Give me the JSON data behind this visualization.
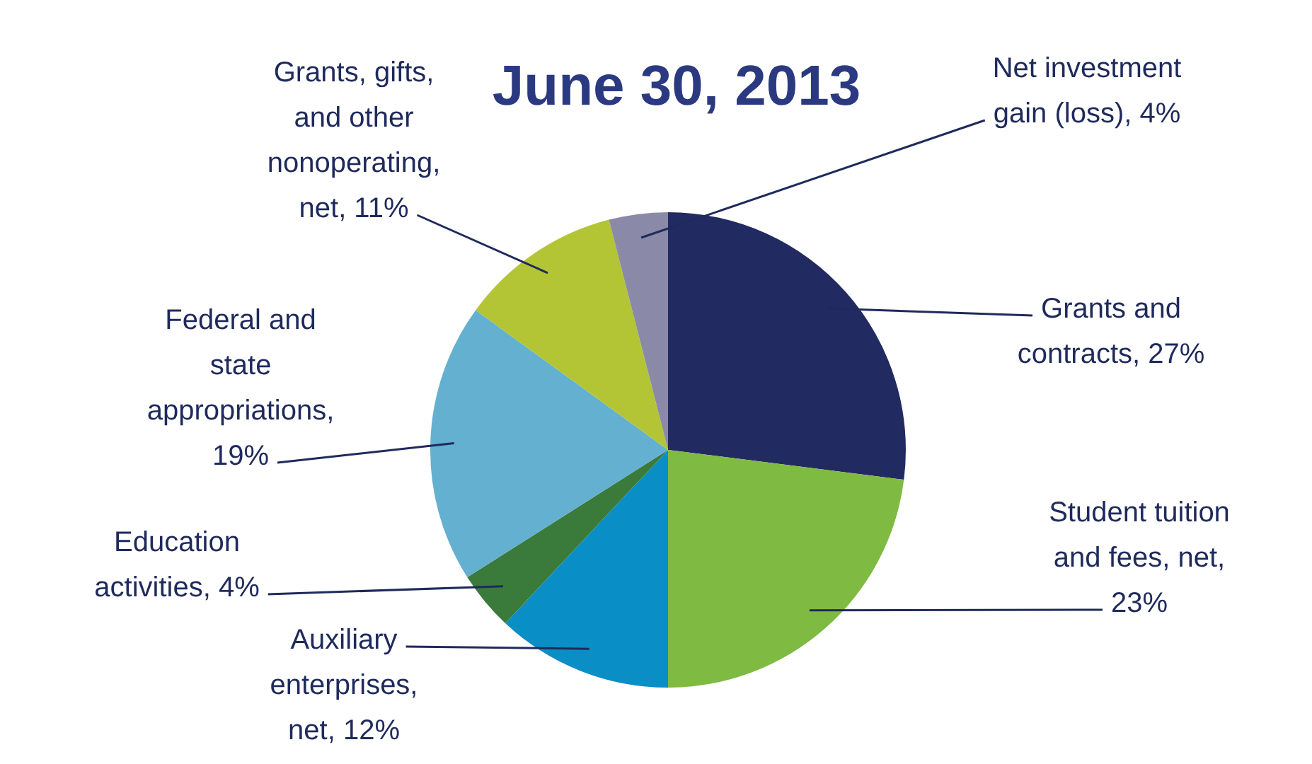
{
  "chart_data": {
    "type": "pie",
    "title": "June 30, 2013",
    "categories": [
      "Grants and contracts, 27%",
      "Student tuition and fees, net, 23%",
      "Auxiliary enterprises, net, 12%",
      "Education activities, 4%",
      "Federal and state appropriations, 19%",
      "Grants, gifts, and other nonoperating, net, 11%",
      "Net investment gain (loss), 4%"
    ],
    "values": [
      27,
      23,
      12,
      4,
      19,
      11,
      4
    ],
    "colors": [
      "#222a62",
      "#7fba42",
      "#0a8ec6",
      "#3a7a3a",
      "#64b0d0",
      "#b3c535",
      "#8a8aa8"
    ],
    "legend": false
  }
}
